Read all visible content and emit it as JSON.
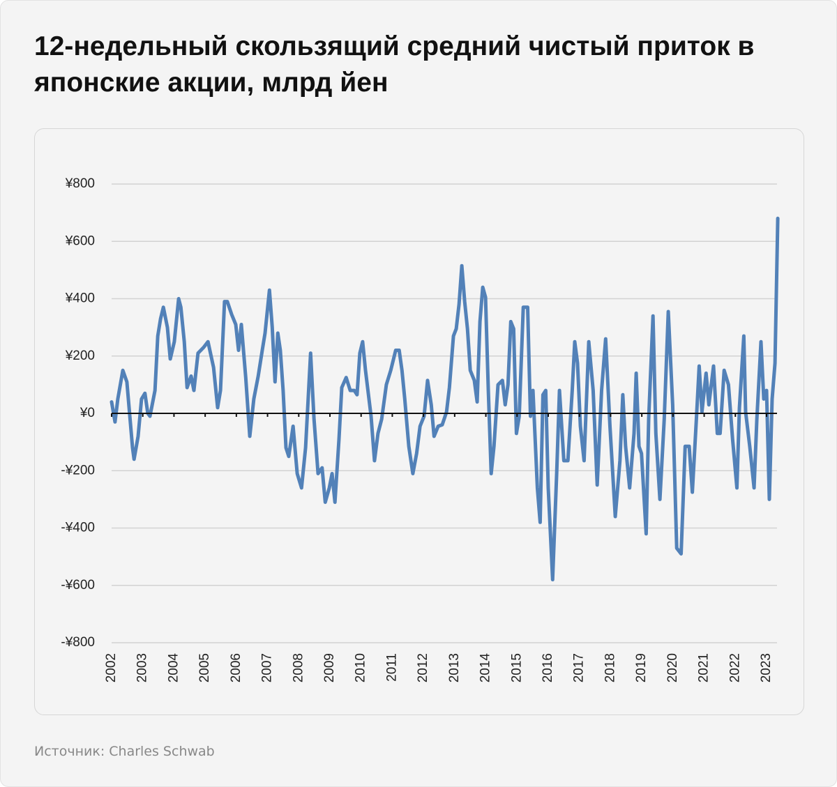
{
  "title": "12-недельный скользящий средний чистый приток в японские акции, млрд йен",
  "source": "Источник: Charles Schwab",
  "chart_data": {
    "type": "line",
    "title": "12-недельный скользящий средний чистый приток в японские акции, млрд йен",
    "xlabel": "",
    "ylabel": "",
    "xlim": [
      2002,
      2023.4
    ],
    "ylim": [
      -800,
      800
    ],
    "grid": true,
    "legend": "none",
    "line_color": "#5281b8",
    "y_ticks": [
      800,
      600,
      400,
      200,
      0,
      -200,
      -400,
      -600,
      -800
    ],
    "y_tick_labels": [
      "¥800",
      "¥600",
      "¥400",
      "¥200",
      "¥0",
      "-¥200",
      "-¥400",
      "-¥600",
      "-¥800"
    ],
    "x_tick_labels": [
      "2002",
      "2003",
      "2004",
      "2005",
      "2006",
      "2007",
      "2008",
      "2009",
      "2010",
      "2011",
      "2012",
      "2013",
      "2014",
      "2015",
      "2016",
      "2017",
      "2018",
      "2019",
      "2020",
      "2021",
      "2022",
      "2023"
    ],
    "series": [
      {
        "x": [
          2002.0,
          2002.11,
          2002.2,
          2002.36,
          2002.49,
          2002.67,
          2002.72,
          2002.85,
          2002.96,
          2003.07,
          2003.16,
          2003.23,
          2003.39,
          2003.48,
          2003.57,
          2003.66,
          2003.79,
          2003.88,
          2004.01,
          2004.15,
          2004.22,
          2004.33,
          2004.42,
          2004.55,
          2004.64,
          2004.77,
          2004.95,
          2005.09,
          2005.27,
          2005.4,
          2005.49,
          2005.62,
          2005.71,
          2005.85,
          2005.98,
          2006.07,
          2006.16,
          2006.3,
          2006.43,
          2006.56,
          2006.7,
          2006.83,
          2006.92,
          2007.06,
          2007.15,
          2007.24,
          2007.33,
          2007.41,
          2007.5,
          2007.59,
          2007.68,
          2007.82,
          2007.95,
          2008.09,
          2008.22,
          2008.38,
          2008.49,
          2008.62,
          2008.75,
          2008.85,
          2008.98,
          2009.07,
          2009.16,
          2009.29,
          2009.38,
          2009.52,
          2009.65,
          2009.78,
          2009.87,
          2009.96,
          2010.05,
          2010.14,
          2010.32,
          2010.43,
          2010.54,
          2010.66,
          2010.81,
          2010.95,
          2011.11,
          2011.22,
          2011.31,
          2011.4,
          2011.53,
          2011.66,
          2011.78,
          2011.89,
          2012.02,
          2012.13,
          2012.25,
          2012.34,
          2012.47,
          2012.6,
          2012.74,
          2012.83,
          2012.96,
          2013.05,
          2013.14,
          2013.23,
          2013.32,
          2013.41,
          2013.5,
          2013.63,
          2013.72,
          2013.81,
          2013.9,
          2013.99,
          2014.08,
          2014.17,
          2014.26,
          2014.39,
          2014.53,
          2014.62,
          2014.71,
          2014.8,
          2014.89,
          2014.98,
          2015.07,
          2015.2,
          2015.34,
          2015.43,
          2015.51,
          2015.65,
          2015.74,
          2015.83,
          2015.92,
          2016.0,
          2016.14,
          2016.27,
          2016.36,
          2016.5,
          2016.63,
          2016.77,
          2016.85,
          2016.94,
          2017.03,
          2017.15,
          2017.3,
          2017.44,
          2017.57,
          2017.71,
          2017.84,
          2017.98,
          2018.15,
          2018.3,
          2018.39,
          2018.48,
          2018.61,
          2018.75,
          2018.82,
          2018.91,
          2018.99,
          2019.14,
          2019.22,
          2019.36,
          2019.45,
          2019.58,
          2019.72,
          2019.85,
          2019.99,
          2020.12,
          2020.26,
          2020.39,
          2020.52,
          2020.62,
          2020.75,
          2020.84,
          2020.93,
          2021.06,
          2021.15,
          2021.3,
          2021.42,
          2021.51,
          2021.64,
          2021.78,
          2021.91,
          2022.05,
          2022.13,
          2022.27,
          2022.33,
          2022.46,
          2022.6,
          2022.69,
          2022.82,
          2022.91,
          2023.0,
          2023.09,
          2023.18,
          2023.27,
          2023.36
        ],
        "y": [
          40,
          -30,
          50,
          150,
          110,
          -120,
          -160,
          -80,
          50,
          70,
          0,
          -10,
          80,
          270,
          330,
          370,
          300,
          190,
          250,
          400,
          370,
          250,
          90,
          130,
          80,
          210,
          230,
          250,
          160,
          20,
          80,
          390,
          390,
          345,
          310,
          220,
          310,
          125,
          -80,
          50,
          130,
          220,
          280,
          430,
          300,
          110,
          280,
          220,
          80,
          -120,
          -150,
          -45,
          -210,
          -260,
          -120,
          210,
          -20,
          -210,
          -190,
          -310,
          -260,
          -210,
          -310,
          -90,
          90,
          125,
          80,
          80,
          65,
          210,
          250,
          150,
          -10,
          -165,
          -70,
          -20,
          100,
          150,
          220,
          220,
          150,
          50,
          -115,
          -210,
          -140,
          -45,
          -10,
          115,
          30,
          -80,
          -45,
          -40,
          5,
          90,
          270,
          295,
          380,
          515,
          390,
          295,
          150,
          115,
          40,
          320,
          440,
          405,
          80,
          -210,
          -115,
          100,
          115,
          30,
          100,
          320,
          295,
          -70,
          -10,
          370,
          370,
          -10,
          80,
          -260,
          -380,
          65,
          80,
          -260,
          -580,
          -210,
          80,
          -165,
          -165,
          80,
          250,
          175,
          -45,
          -165,
          250,
          80,
          -250,
          80,
          260,
          -45,
          -360,
          -165,
          65,
          -115,
          -260,
          -70,
          140,
          -115,
          -140,
          -420,
          -20,
          340,
          -70,
          -300,
          -20,
          355,
          30,
          -470,
          -490,
          -115,
          -115,
          -275,
          -20,
          165,
          5,
          140,
          30,
          165,
          -70,
          -70,
          150,
          100,
          -90,
          -260,
          20,
          270,
          5,
          -115,
          -260,
          -20,
          250,
          50,
          80,
          -300,
          50,
          175,
          680
        ]
      }
    ]
  }
}
